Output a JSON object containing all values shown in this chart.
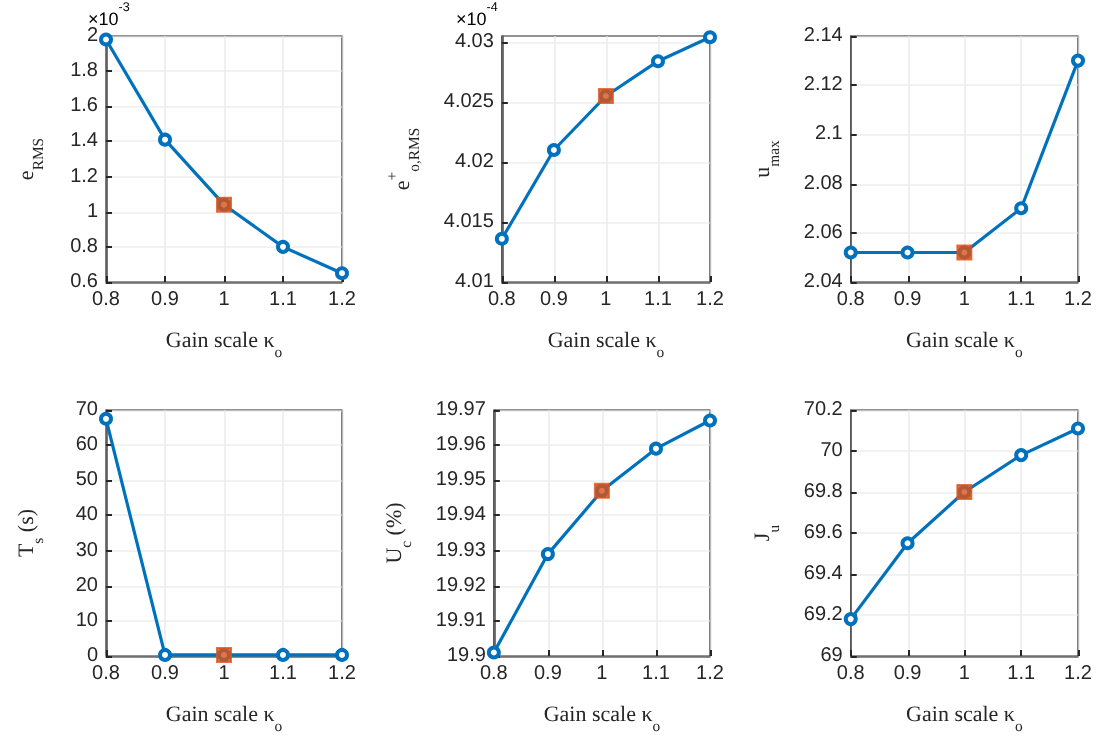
{
  "chart_data": [
    {
      "type": "line",
      "xlabel": "Gain scale κ$_{o}$",
      "ylabel": "e$_{RMS}$",
      "annotations": [
        "×10$^{-3}$"
      ],
      "xlim": [
        0.8,
        1.2
      ],
      "xticks": [
        0.8,
        0.9,
        1,
        1.1,
        1.2
      ],
      "ylim": [
        0.6,
        2
      ],
      "yticks": [
        0.6,
        0.8,
        1,
        1.2,
        1.4,
        1.6,
        1.8,
        2
      ],
      "grid": true,
      "x": [
        0.8,
        0.9,
        1,
        1.1,
        1.2
      ],
      "series": [
        {
          "color": "#0072bd",
          "marker": "circle",
          "values": [
            1.98,
            1.41,
            1.04,
            0.8,
            0.65
          ]
        },
        {
          "type": "scatter",
          "color": "#d95319",
          "marker": "square",
          "values": [
            null,
            null,
            1.04,
            null,
            null
          ]
        }
      ]
    },
    {
      "type": "line",
      "xlabel": "Gain scale κ$_{o}$",
      "ylabel": "e$^{+}$$_{o,RMS}$",
      "annotations": [
        "×10$^{-4}$"
      ],
      "xlim": [
        0.8,
        1.2
      ],
      "xticks": [
        0.8,
        0.9,
        1,
        1.1,
        1.2
      ],
      "ylim": [
        4.01,
        4.0305
      ],
      "yticks": [
        4.01,
        4.015,
        4.02,
        4.025,
        4.03
      ],
      "grid": true,
      "x": [
        0.8,
        0.9,
        1,
        1.1,
        1.2
      ],
      "series": [
        {
          "color": "#0072bd",
          "marker": "circle",
          "values": [
            4.0136,
            4.021,
            4.0255,
            4.0284,
            4.0304
          ]
        },
        {
          "type": "scatter",
          "color": "#d95319",
          "marker": "square",
          "values": [
            null,
            null,
            4.0255,
            null,
            null
          ]
        }
      ]
    },
    {
      "type": "line",
      "xlabel": "Gain scale κ$_{o}$",
      "ylabel": "u$_{max}$",
      "xlim": [
        0.8,
        1.2
      ],
      "xticks": [
        0.8,
        0.9,
        1,
        1.1,
        1.2
      ],
      "ylim": [
        2.04,
        2.14
      ],
      "yticks": [
        2.04,
        2.06,
        2.08,
        2.1,
        2.12,
        2.14
      ],
      "grid": true,
      "x": [
        0.8,
        0.9,
        1,
        1.1,
        1.2
      ],
      "series": [
        {
          "color": "#0072bd",
          "marker": "circle",
          "values": [
            2.052,
            2.052,
            2.052,
            2.07,
            2.13
          ]
        },
        {
          "type": "scatter",
          "color": "#d95319",
          "marker": "square",
          "values": [
            null,
            null,
            2.052,
            null,
            null
          ]
        }
      ]
    },
    {
      "type": "line",
      "xlabel": "Gain scale κ$_{o}$",
      "ylabel": "T$_{s}$ (s)",
      "xlim": [
        0.8,
        1.2
      ],
      "xticks": [
        0.8,
        0.9,
        1,
        1.1,
        1.2
      ],
      "ylim": [
        0,
        70
      ],
      "yticks": [
        0,
        10,
        20,
        30,
        40,
        50,
        60,
        70
      ],
      "grid": true,
      "x": [
        0.8,
        0.9,
        1,
        1.1,
        1.2
      ],
      "series": [
        {
          "color": "#0072bd",
          "marker": "circle",
          "values": [
            67.5,
            0.3,
            0.3,
            0.3,
            0.3
          ]
        },
        {
          "type": "scatter",
          "color": "#d95319",
          "marker": "square",
          "values": [
            null,
            null,
            0.3,
            null,
            null
          ]
        }
      ]
    },
    {
      "type": "line",
      "xlabel": "Gain scale κ$_{o}$",
      "ylabel": "U$_{c}$ (%)",
      "xlim": [
        0.8,
        1.2
      ],
      "xticks": [
        0.8,
        0.9,
        1,
        1.1,
        1.2
      ],
      "ylim": [
        19.9,
        19.97
      ],
      "yticks": [
        19.9,
        19.91,
        19.92,
        19.93,
        19.94,
        19.95,
        19.96,
        19.97
      ],
      "grid": true,
      "x": [
        0.8,
        0.9,
        1,
        1.1,
        1.2
      ],
      "series": [
        {
          "color": "#0072bd",
          "marker": "circle",
          "values": [
            19.901,
            19.929,
            19.947,
            19.959,
            19.967
          ]
        },
        {
          "type": "scatter",
          "color": "#d95319",
          "marker": "square",
          "values": [
            null,
            null,
            19.947,
            null,
            null
          ]
        }
      ]
    },
    {
      "type": "line",
      "xlabel": "Gain scale κ$_{o}$",
      "ylabel": "J$_{u}$",
      "xlim": [
        0.8,
        1.2
      ],
      "xticks": [
        0.8,
        0.9,
        1,
        1.1,
        1.2
      ],
      "ylim": [
        69,
        70.2
      ],
      "yticks": [
        69,
        69.2,
        69.4,
        69.6,
        69.8,
        70,
        70.2
      ],
      "grid": true,
      "x": [
        0.8,
        0.9,
        1,
        1.1,
        1.2
      ],
      "series": [
        {
          "color": "#0072bd",
          "marker": "circle",
          "values": [
            69.18,
            69.55,
            69.8,
            69.98,
            70.11
          ]
        },
        {
          "type": "scatter",
          "color": "#d95319",
          "marker": "square",
          "values": [
            null,
            null,
            69.8,
            null,
            null
          ]
        }
      ]
    }
  ]
}
